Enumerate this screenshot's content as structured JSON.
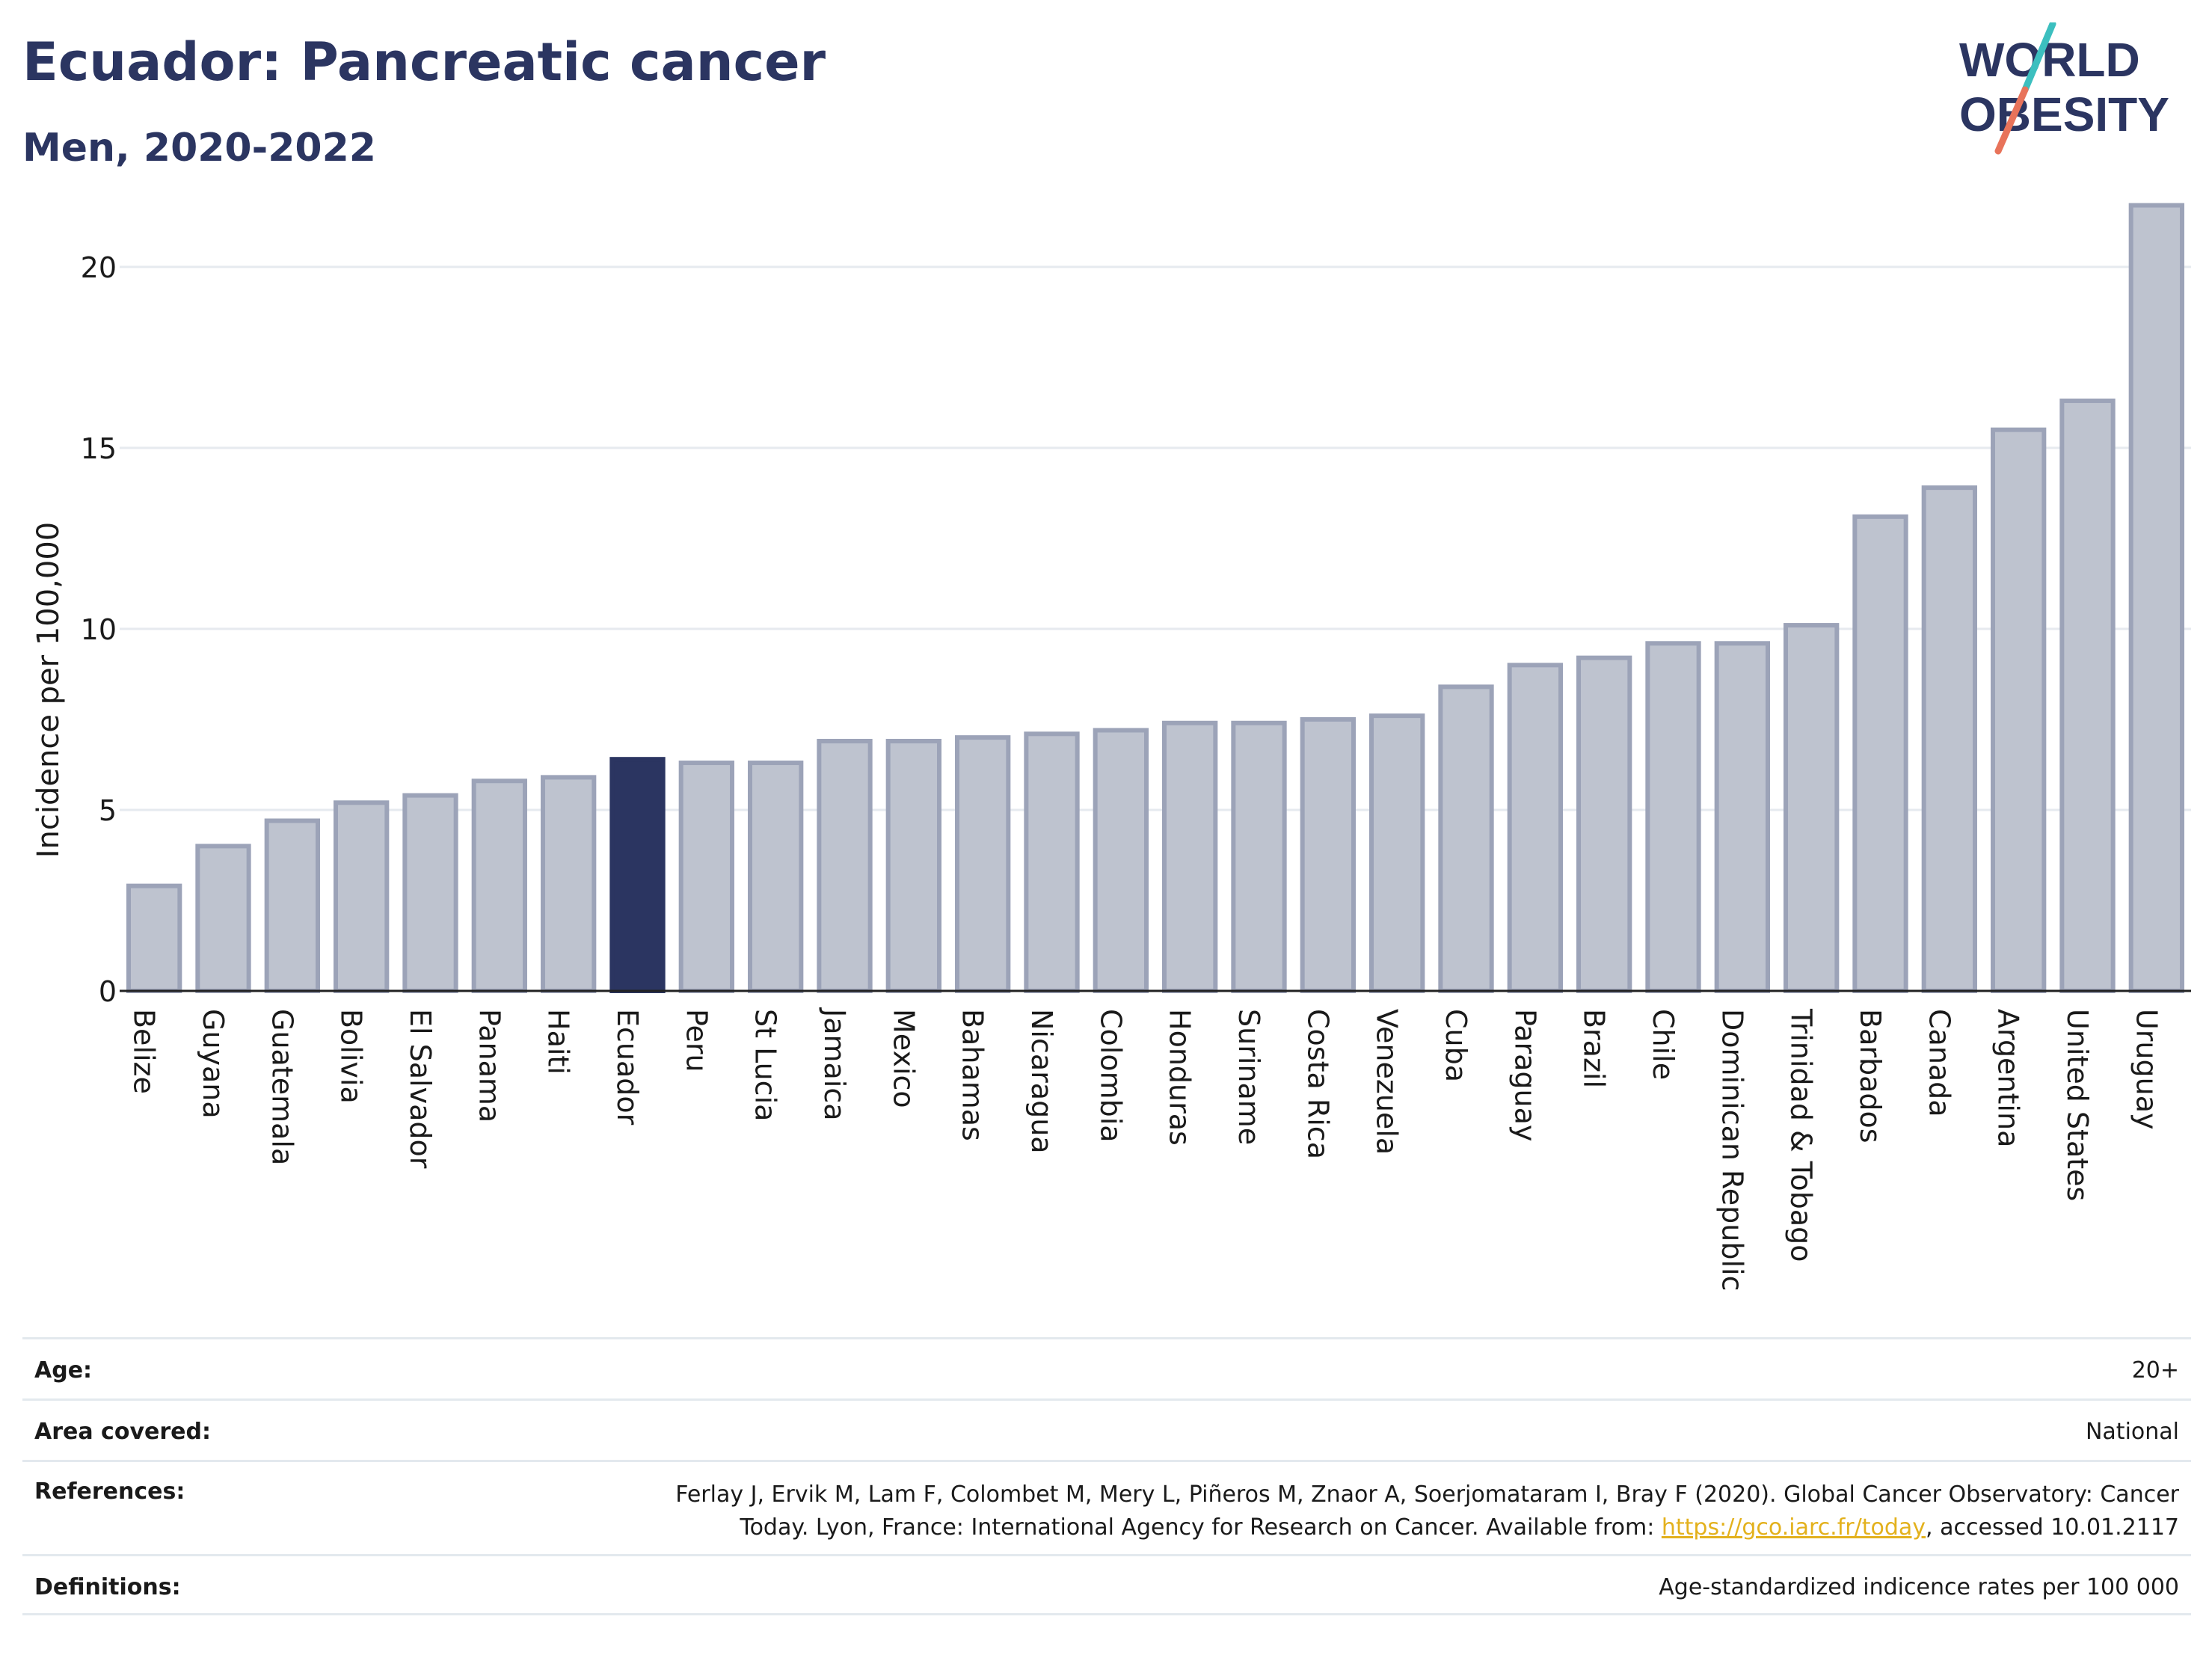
{
  "header": {
    "title": "Ecuador: Pancreatic cancer",
    "subtitle": "Men, 2020-2022"
  },
  "logo": {
    "line1": "WORLD",
    "line2": "OBESITY",
    "colors": {
      "text": "#2b3561",
      "slash_top": "#3cbfbf",
      "slash_bottom": "#e8735a"
    }
  },
  "colors": {
    "bar": "#bec3cf",
    "bar_border": "#9ca3b8",
    "highlight": "#2b3561",
    "grid": "#e6eaef",
    "axis": "#222222"
  },
  "chart_data": {
    "type": "bar",
    "ylabel": "Incidence per 100,000",
    "ylim": [
      0,
      22
    ],
    "yticks": [
      0,
      5,
      10,
      15,
      20
    ],
    "highlight": "Ecuador",
    "categories": [
      "Belize",
      "Guyana",
      "Guatemala",
      "Bolivia",
      "El Salvador",
      "Panama",
      "Haiti",
      "Ecuador",
      "Peru",
      "St Lucia",
      "Jamaica",
      "Mexico",
      "Bahamas",
      "Nicaragua",
      "Colombia",
      "Honduras",
      "Suriname",
      "Costa Rica",
      "Venezuela",
      "Cuba",
      "Paraguay",
      "Brazil",
      "Chile",
      "Dominican Republic",
      "Trinidad & Tobago",
      "Barbados",
      "Canada",
      "Argentina",
      "United States",
      "Uruguay"
    ],
    "values": [
      2.9,
      4.0,
      4.7,
      5.2,
      5.4,
      5.8,
      5.9,
      6.4,
      6.3,
      6.3,
      6.9,
      6.9,
      7.0,
      7.1,
      7.2,
      7.4,
      7.4,
      7.5,
      7.6,
      8.4,
      9.0,
      9.2,
      9.6,
      9.6,
      10.1,
      13.1,
      13.9,
      15.5,
      16.3,
      21.7
    ]
  },
  "info": {
    "age_label": "Age:",
    "age_value": "20+",
    "area_label": "Area covered:",
    "area_value": "National",
    "references_label": "References:",
    "references_line1": "Ferlay J, Ervik M, Lam F, Colombet M, Mery L, Piñeros M, Znaor A, Soerjomataram I, Bray F (2020). Global Cancer Observatory: Cancer",
    "references_line2_prefix": "Today. Lyon, France: International Agency for Research on Cancer. Available from: ",
    "references_link": "https://gco.iarc.fr/today",
    "references_line2_suffix": ", accessed 10.01.2117",
    "definitions_label": "Definitions:",
    "definitions_value": "Age-standardized indicence rates per 100 000"
  }
}
